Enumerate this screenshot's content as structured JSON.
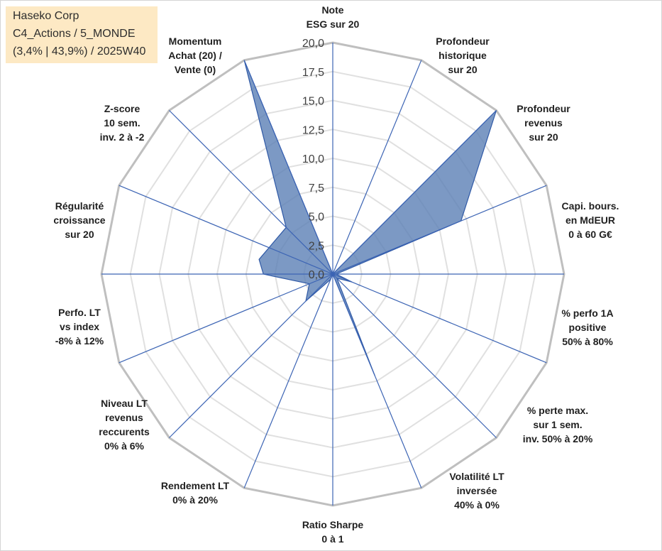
{
  "header": {
    "lines": [
      "Haseko Corp",
      "C4_Actions / 5_MONDE",
      "(3,4% | 43,9%) / 2025W40"
    ]
  },
  "colors": {
    "fill": "#5b80b5",
    "stroke": "#2f59a6",
    "axis": "#3c64b4",
    "grid_outer": "#bfbfbf",
    "grid_inner": "#e0e0e0",
    "info_bg": "#fde9c4"
  },
  "chart_data": {
    "type": "radar",
    "title": "",
    "rmin": 0,
    "rmax": 20,
    "ticks": [
      "0,0",
      "2,5",
      "5,0",
      "7,5",
      "10,0",
      "12,5",
      "15,0",
      "17,5",
      "20,0"
    ],
    "grid": true,
    "axes": [
      {
        "label": [
          "Note",
          "ESG sur 20"
        ],
        "value": 0
      },
      {
        "label": [
          "Profondeur",
          "historique",
          "sur 20"
        ],
        "value": 20
      },
      {
        "label": [
          "Profondeur",
          "revenus",
          "sur 20"
        ],
        "value": 12
      },
      {
        "label": [
          "Capi. bours.",
          "en MdEUR",
          "0 à 60 G€"
        ],
        "value": 0.3
      },
      {
        "label": [
          "% perfo 1A",
          "positive",
          "50% à 80%"
        ],
        "value": 1.8
      },
      {
        "label": [
          "% perte max.",
          "sur 1 sem.",
          "inv. 50% à 20%"
        ],
        "value": 0.5
      },
      {
        "label": [
          "Volatilité LT",
          "inversée",
          "40% à 0%"
        ],
        "value": 9.5
      },
      {
        "label": [
          "Ratio Sharpe",
          "0 à 1"
        ],
        "value": 0
      },
      {
        "label": [
          "Rendement LT",
          "0% à 20%"
        ],
        "value": 0.5
      },
      {
        "label": [
          "Niveau LT",
          "revenus",
          "reccurents",
          "0% à 6%"
        ],
        "value": 3.3
      },
      {
        "label": [
          "Perfo. LT",
          "vs index",
          "-8% à 12%"
        ],
        "value": 2.2
      },
      {
        "label": [
          "Régularité",
          "croissance",
          "sur 20"
        ],
        "value": 6
      },
      {
        "label": [
          "Perfo. LT",
          "vs index",
          "-8% à 12%"
        ],
        "value": 6.5,
        "hidden_label": true
      },
      {
        "label": [
          "Z-score",
          "10 sem.",
          "inv. 2 à -2"
        ],
        "value": 5.7
      },
      {
        "label": [
          "Momentum",
          "Achat (20) /",
          "Vente (0)"
        ],
        "value": 20
      }
    ]
  }
}
